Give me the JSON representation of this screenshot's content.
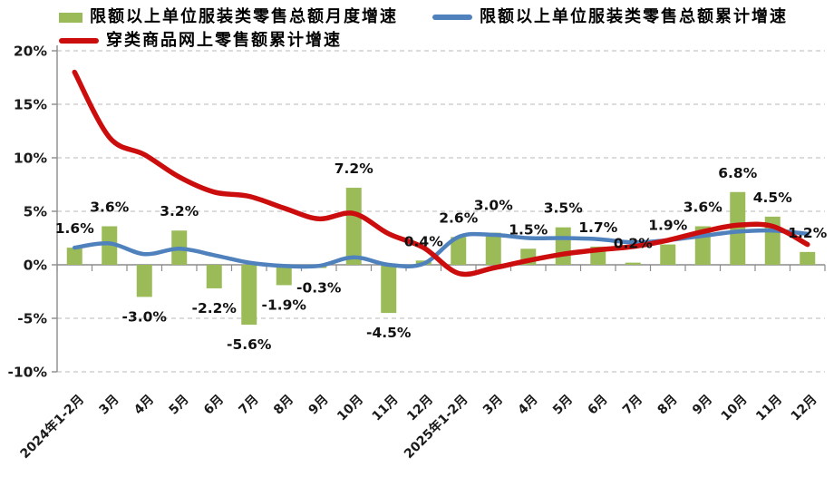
{
  "legend": {
    "items": [
      {
        "label": "限额以上单位服装类零售总额月度增速",
        "swatch": "bar",
        "color": "#9BBB59"
      },
      {
        "label": "限额以上单位服装类零售总额累计增速",
        "swatch": "line",
        "color": "#4F81BD"
      },
      {
        "label": "穿类商品网上零售额累计增速",
        "swatch": "line",
        "color": "#CC0D0D"
      }
    ]
  },
  "chart_data": {
    "type": "bar",
    "title": "",
    "xlabel": "",
    "ylabel": "",
    "grid": "dashed-horizontal",
    "legend_position": "top",
    "categories": [
      "2024年1-2月",
      "3月",
      "4月",
      "5月",
      "6月",
      "7月",
      "8月",
      "9月",
      "10月",
      "11月",
      "12月",
      "2025年1-2月",
      "3月",
      "4月",
      "5月",
      "6月",
      "7月",
      "8月",
      "9月",
      "10月",
      "11月",
      "12月"
    ],
    "series": [
      {
        "id": "monthly",
        "name": "限额以上单位服装类零售总额月度增速",
        "type": "bar",
        "color": "#9BBB59",
        "values": [
          1.6,
          3.6,
          -3.0,
          3.2,
          -2.2,
          -5.6,
          -1.9,
          -0.3,
          7.2,
          -4.5,
          0.4,
          2.6,
          3.0,
          1.5,
          3.5,
          1.7,
          0.2,
          1.9,
          3.6,
          6.8,
          4.5,
          1.2
        ],
        "labels": [
          "1.6%",
          "3.6%",
          "-3.0%",
          "3.2%",
          "-2.2%",
          "-5.6%",
          "-1.9%",
          "-0.3%",
          "7.2%",
          "-4.5%",
          "0.4%",
          "2.6%",
          "3.0%",
          "1.5%",
          "3.5%",
          "1.7%",
          "0.2%",
          "1.9%",
          "3.6%",
          "6.8%",
          "4.5%",
          "1.2%"
        ]
      },
      {
        "id": "cumulative",
        "name": "限额以上单位服装类零售总额累计增速",
        "type": "line",
        "color": "#4F81BD",
        "width": 4.5,
        "values": [
          1.6,
          2.0,
          1.0,
          1.5,
          0.9,
          0.2,
          -0.1,
          -0.1,
          0.7,
          0.0,
          0.1,
          2.6,
          2.8,
          2.5,
          2.5,
          2.4,
          2.1,
          2.3,
          2.7,
          3.1,
          3.2,
          2.9
        ]
      },
      {
        "id": "online",
        "name": "穿类商品网上零售额累计增速",
        "type": "line",
        "color": "#CC0D0D",
        "width": 5.5,
        "values": [
          18.0,
          11.9,
          10.3,
          8.2,
          6.8,
          6.4,
          5.3,
          4.3,
          4.8,
          2.9,
          1.6,
          -0.8,
          -0.3,
          0.4,
          1.0,
          1.4,
          1.7,
          2.3,
          3.1,
          3.7,
          3.6,
          1.9
        ]
      }
    ],
    "y_axis": {
      "min": -10,
      "max": 20,
      "step": 5,
      "ticks": [
        20,
        15,
        10,
        5,
        0,
        -5,
        -10
      ],
      "tick_labels": [
        "20%",
        "15%",
        "10%",
        "5%",
        "0%",
        "-5%",
        "-10%"
      ]
    },
    "label_offsets": {
      "12": [
        0,
        -9
      ]
    }
  }
}
